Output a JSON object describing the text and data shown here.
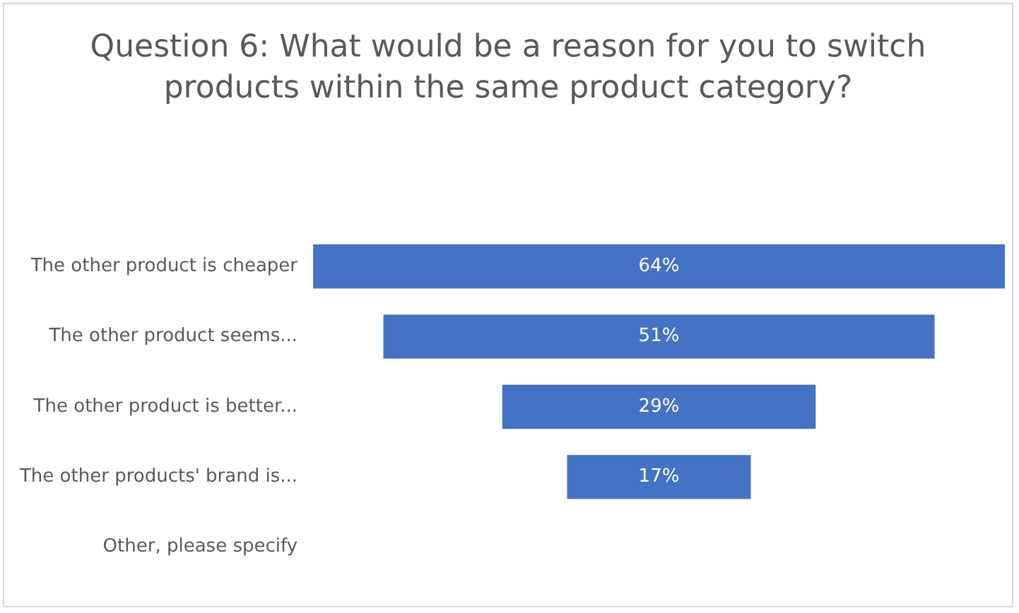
{
  "chart_data": {
    "type": "other",
    "title": "Question 6: What would be a reason for you to switch products within the same product category?",
    "categories": [
      "The other product is cheaper",
      "The other product seems...",
      "The other product is better...",
      "The other products' brand is...",
      "Other, please specify"
    ],
    "values": [
      64,
      51,
      29,
      17,
      null
    ],
    "value_labels": [
      "64%",
      "51%",
      "29%",
      "17%",
      null
    ],
    "color": "#4472c4"
  }
}
